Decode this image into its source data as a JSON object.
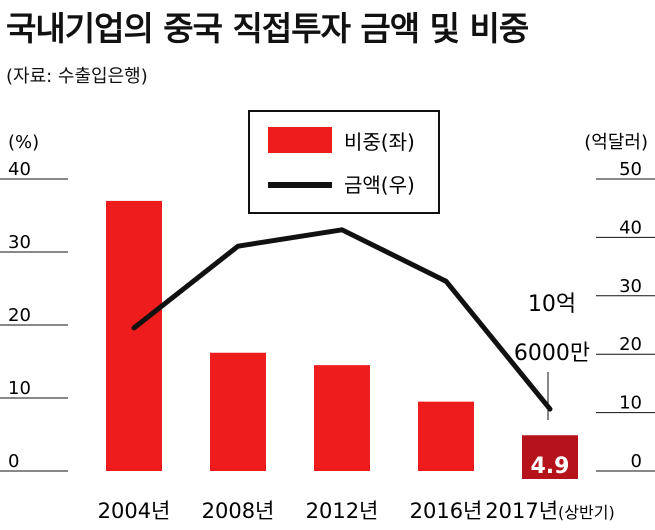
{
  "title": "국내기업의 중국 직접투자 금액 및 비중",
  "source": "(자료: 수출입은행)",
  "chart_data": {
    "type": "bar+line",
    "categories": [
      "2004년",
      "2008년",
      "2012년",
      "2016년",
      "2017년"
    ],
    "category_suffix": [
      "",
      "",
      "",
      "",
      "(상반기)"
    ],
    "left_axis": {
      "unit": "(%)",
      "ylim": [
        0,
        40
      ],
      "ticks": [
        0,
        10,
        20,
        30,
        40
      ]
    },
    "right_axis": {
      "unit": "(억달러)",
      "ylim": [
        0,
        50
      ],
      "ticks": [
        0,
        10,
        20,
        30,
        40,
        50
      ]
    },
    "series": [
      {
        "name": "비중(좌)",
        "type": "bar",
        "axis": "left",
        "values": [
          37,
          16.2,
          14.5,
          9.5,
          4.9
        ],
        "color": "#ee1c1c",
        "highlight_color": "#b5121b",
        "labels": [
          "",
          "",
          "",
          "",
          "4.9"
        ]
      },
      {
        "name": "금액(우)",
        "type": "line",
        "axis": "right",
        "values": [
          24.5,
          38.5,
          41.3,
          32.5,
          10.6
        ],
        "color": "#111111"
      }
    ],
    "annotations": [
      {
        "text_line1": "10억",
        "text_line2": "6000만"
      }
    ],
    "legend_position": "top-center",
    "grid": false
  }
}
